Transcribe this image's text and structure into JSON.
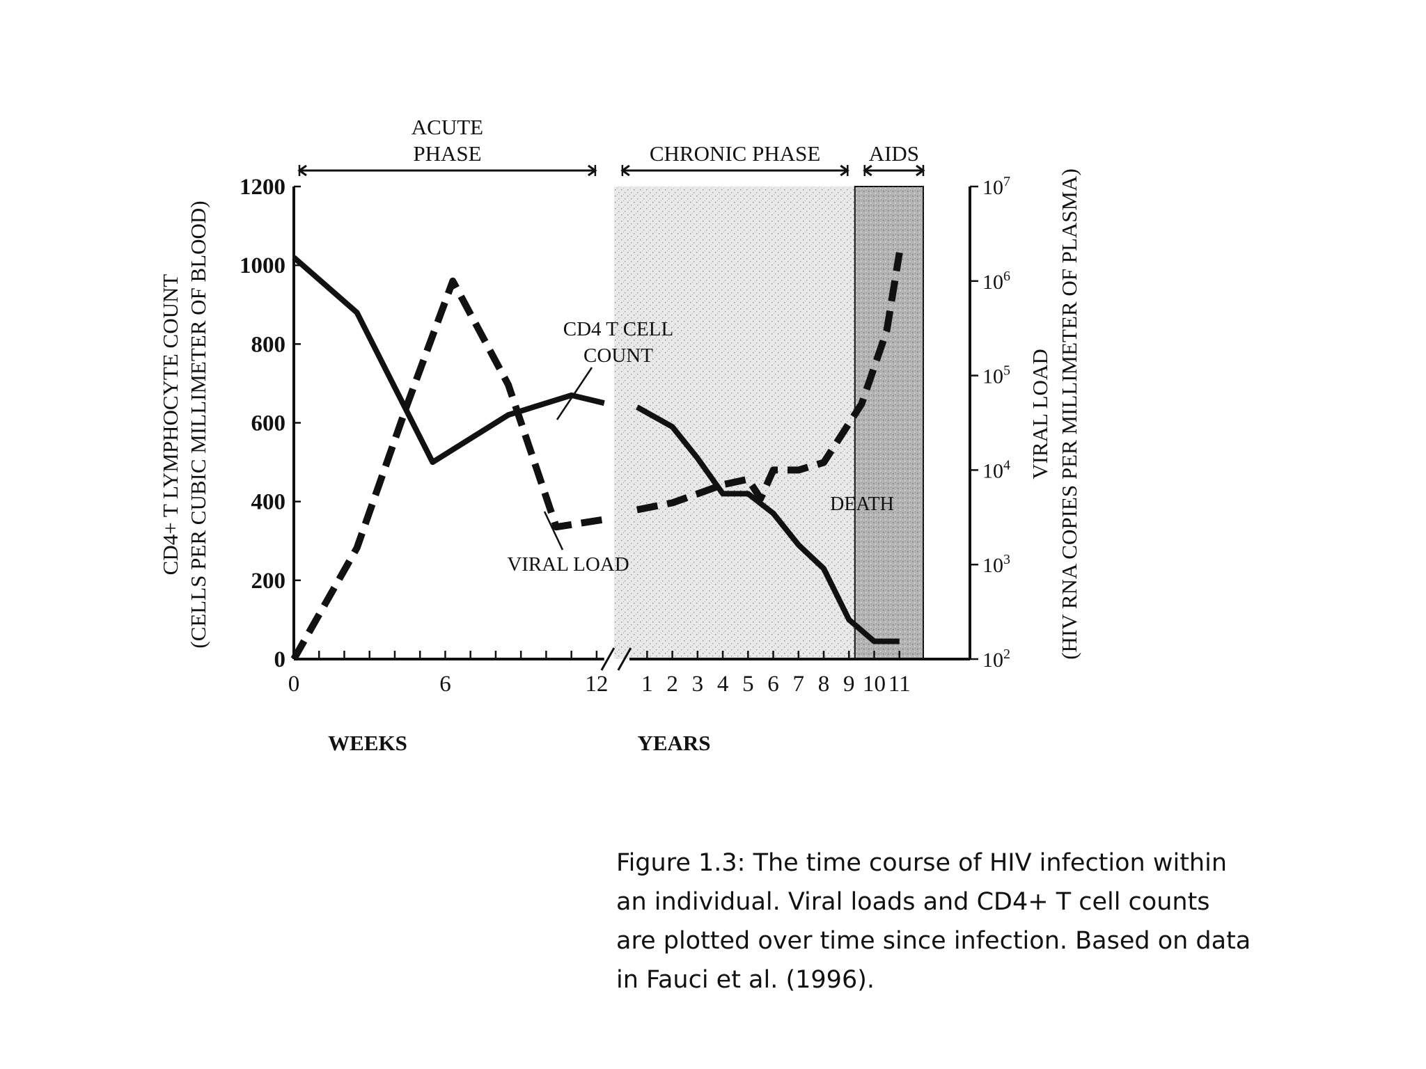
{
  "chart_data": {
    "type": "line",
    "colors": {
      "ink": "#111111",
      "chronic_shade": "#e9e9e9",
      "aids_shade": "#b4b4b4"
    },
    "phases": [
      {
        "label": "ACUTE\nPHASE",
        "start": 0,
        "end": 12
      },
      {
        "label": "CHRONIC PHASE",
        "start": 12.8,
        "end": 22
      },
      {
        "label": "AIDS",
        "start": 22.4,
        "end": 25
      }
    ],
    "left_axis": {
      "label_line1": "CD4+ T LYMPHOCYTE COUNT",
      "label_line2": "(CELLS PER CUBIC MILLIMETER OF BLOOD)",
      "ylim": [
        0,
        1200
      ],
      "ticks": [
        "0",
        "200",
        "400",
        "600",
        "800",
        "1000",
        "1200"
      ]
    },
    "right_axis": {
      "label_line1": "VIRAL LOAD",
      "label_line2": "(HIV RNA COPIES PER MILLIMETER OF PLASMA)",
      "scale": "log",
      "ylim_exponent": [
        2,
        7
      ],
      "ticks": [
        {
          "base": "10",
          "exp": "2"
        },
        {
          "base": "10",
          "exp": "3"
        },
        {
          "base": "10",
          "exp": "4"
        },
        {
          "base": "10",
          "exp": "5"
        },
        {
          "base": "10",
          "exp": "6"
        },
        {
          "base": "10",
          "exp": "7"
        }
      ]
    },
    "x_axis": {
      "xlim": [
        0,
        25
      ],
      "unit_labels": {
        "weeks": "WEEKS",
        "years": "YEARS"
      },
      "week_ticks": [
        {
          "label": "0",
          "x": 0
        },
        {
          "label": "6",
          "x": 6
        },
        {
          "label": "12",
          "x": 12
        }
      ],
      "year_ticks": [
        {
          "label": "1",
          "x": 14
        },
        {
          "label": "2",
          "x": 15
        },
        {
          "label": "3",
          "x": 16
        },
        {
          "label": "4",
          "x": 17
        },
        {
          "label": "5",
          "x": 18
        },
        {
          "label": "6",
          "x": 19
        },
        {
          "label": "7",
          "x": 20
        },
        {
          "label": "8",
          "x": 21
        },
        {
          "label": "9",
          "x": 22
        },
        {
          "label": "10",
          "x": 23
        },
        {
          "label": "11",
          "x": 24
        }
      ],
      "axis_break_at": 12.8
    },
    "series": [
      {
        "name": "CD4 T CELL COUNT",
        "label_line1": "CD4 T CELL",
        "label_line2": "COUNT",
        "axis": "left",
        "style": "solid",
        "x": [
          0,
          2.5,
          5.5,
          8.5,
          11,
          12.3,
          13.6,
          15,
          16,
          17,
          18,
          19,
          20,
          21,
          22,
          23,
          24
        ],
        "y": [
          1020,
          880,
          500,
          620,
          670,
          650,
          640,
          590,
          510,
          420,
          420,
          370,
          290,
          230,
          100,
          45,
          45
        ]
      },
      {
        "name": "VIRAL LOAD",
        "label": "VIRAL LOAD",
        "axis": "right",
        "style": "dashed",
        "x": [
          0,
          2.5,
          4.5,
          6.3,
          8.5,
          10.4,
          12.3,
          13.6,
          15,
          16,
          17,
          18,
          18.5,
          19,
          20,
          21,
          22.5,
          23.5,
          24
        ],
        "y": [
          100,
          1500,
          50000,
          1000000,
          80000,
          2500,
          3000,
          3800,
          4500,
          5600,
          7000,
          8000,
          5000,
          10000,
          10000,
          12000,
          50000,
          300000,
          2000000
        ]
      }
    ],
    "annotations": [
      {
        "label": "DEATH",
        "x": 23.5
      }
    ]
  },
  "caption": {
    "line1": "Figure 1.3: The time course of HIV infection within",
    "line2": "an individual. Viral loads and CD4+ T cell counts",
    "line3": "are plotted over time since infection. Based on data",
    "line4": "in Fauci et al. (1996)."
  }
}
